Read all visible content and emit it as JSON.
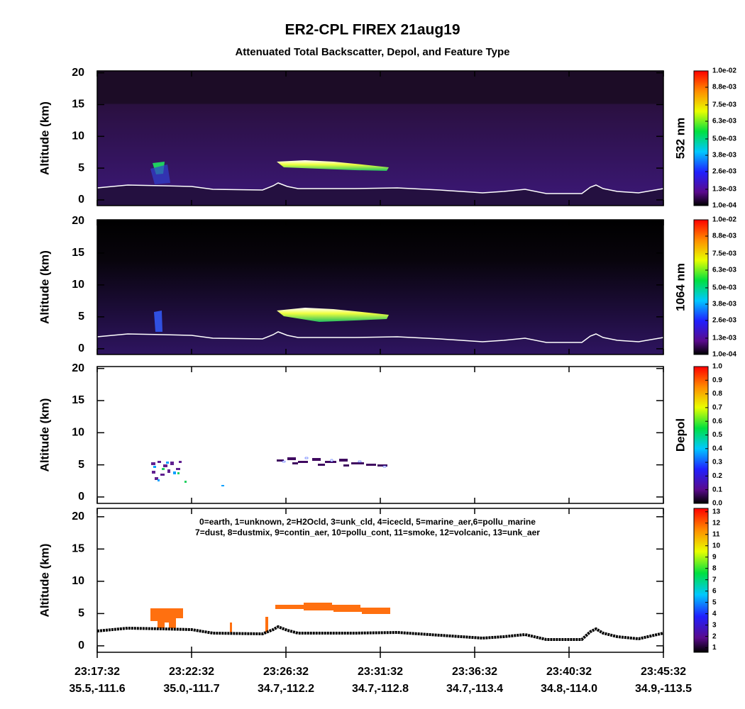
{
  "title": "ER2-CPL FIREX 21aug19",
  "subtitle": "Attenuated Total Backscatter, Depol, and Feature Type",
  "x_categories": {
    "time": [
      "23:17:32",
      "23:22:32",
      "23:26:32",
      "23:31:32",
      "23:36:32",
      "23:40:32",
      "23:45:32"
    ],
    "location": [
      "35.5,-111.6",
      "35.0,-111.7",
      "34.7,-112.2",
      "34.7,-112.8",
      "34.7,-113.4",
      "34.8,-114.0",
      "34.9,-113.5"
    ]
  },
  "feature_legend": [
    "0=earth, 1=unknown, 2=H2Ocld, 3=unk_cld, 4=icecld, 5=marine_aer,6=pollu_marine",
    "7=dust, 8=dustmix, 9=contin_aer, 10=pollu_cont, 11=smoke, 12=volcanic, 13=unk_aer"
  ],
  "panels": [
    {
      "type": "heatmap",
      "ylabel": "Altitude (km)",
      "ylim": [
        -0.9,
        20.3
      ],
      "yticks": [
        0,
        5,
        10,
        15,
        20
      ],
      "colorbar": {
        "label": "532 nm",
        "lim": [
          0.0001,
          0.01
        ],
        "ticks": [
          {
            "value": 0.0001,
            "label": "1.0e-04"
          },
          {
            "value": 0.0013,
            "label": "1.3e-03"
          },
          {
            "value": 0.0026,
            "label": "2.6e-03"
          },
          {
            "value": 0.0038,
            "label": "3.8e-03"
          },
          {
            "value": 0.005,
            "label": "5.0e-03"
          },
          {
            "value": 0.0063,
            "label": "6.3e-03"
          },
          {
            "value": 0.0075,
            "label": "7.5e-03"
          },
          {
            "value": 0.0088,
            "label": "8.8e-03"
          },
          {
            "value": 0.01,
            "label": "1.0e-02"
          }
        ]
      }
    },
    {
      "type": "heatmap",
      "ylabel": "Altitude (km)",
      "ylim": [
        -0.9,
        20.2
      ],
      "yticks": [
        0,
        5,
        10,
        15,
        20
      ],
      "colorbar": {
        "label": "1064 nm",
        "lim": [
          0.0001,
          0.01
        ],
        "ticks": [
          {
            "value": 0.0001,
            "label": "1.0e-04"
          },
          {
            "value": 0.0013,
            "label": "1.3e-03"
          },
          {
            "value": 0.0026,
            "label": "2.6e-03"
          },
          {
            "value": 0.0038,
            "label": "3.8e-03"
          },
          {
            "value": 0.005,
            "label": "5.0e-03"
          },
          {
            "value": 0.0063,
            "label": "6.3e-03"
          },
          {
            "value": 0.0075,
            "label": "7.5e-03"
          },
          {
            "value": 0.0088,
            "label": "8.8e-03"
          },
          {
            "value": 0.01,
            "label": "1.0e-02"
          }
        ]
      }
    },
    {
      "type": "heatmap",
      "ylabel": "Altitude (km)",
      "ylim": [
        -1.0,
        20.3
      ],
      "yticks": [
        0,
        5,
        10,
        15,
        20
      ],
      "colorbar": {
        "label": "Depol",
        "lim": [
          0,
          1
        ],
        "ticks": [
          {
            "value": 0,
            "label": "0.0"
          },
          0.1,
          0.2,
          0.3,
          0.4,
          0.5,
          0.6,
          0.7,
          0.8,
          0.9,
          {
            "value": 1,
            "label": "1.0"
          }
        ]
      }
    },
    {
      "type": "heatmap",
      "ylabel": "Altitude (km)",
      "ylim": [
        -1.0,
        21.3
      ],
      "yticks": [
        0,
        5,
        10,
        15,
        20
      ],
      "colorbar": {
        "lim": [
          0.6,
          13.3
        ],
        "ticks": [
          1,
          2,
          3,
          4,
          5,
          6,
          7,
          8,
          9,
          10,
          11,
          12,
          13
        ]
      }
    }
  ]
}
